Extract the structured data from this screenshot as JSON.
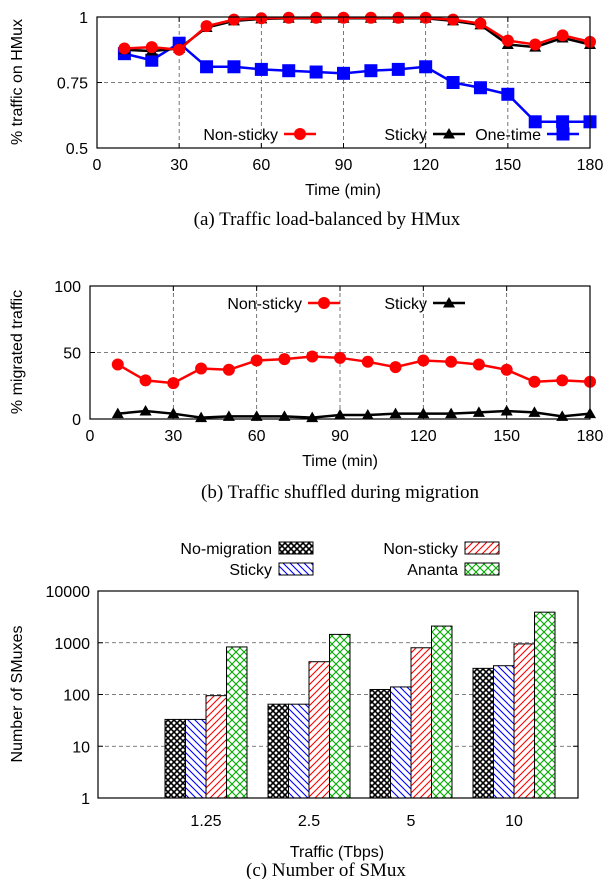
{
  "chart_data": [
    {
      "type": "line",
      "caption": "(a) Traffic load-balanced by HMux",
      "xlabel": "Time (min)",
      "ylabel": "% traffic on HMux",
      "xlim": [
        0,
        180
      ],
      "ylim": [
        0.5,
        1
      ],
      "xticks": [
        "0",
        "30",
        "60",
        "90",
        "120",
        "150",
        "180"
      ],
      "yticks": [
        "0.5",
        "0.75",
        "1"
      ],
      "grid": "dashed",
      "legend_position": "bottom",
      "x": [
        10,
        20,
        30,
        40,
        50,
        60,
        70,
        80,
        90,
        100,
        110,
        120,
        130,
        140,
        150,
        160,
        170,
        180
      ],
      "series": [
        {
          "name": "Non-sticky",
          "marker": "circle",
          "color": "#ff0000",
          "values": [
            0.88,
            0.885,
            0.875,
            0.965,
            0.99,
            0.995,
            0.997,
            0.997,
            0.997,
            0.997,
            0.997,
            0.997,
            0.99,
            0.975,
            0.91,
            0.895,
            0.93,
            0.905
          ]
        },
        {
          "name": "Sticky",
          "marker": "triangle",
          "color": "#000000",
          "values": [
            0.875,
            0.87,
            0.88,
            0.96,
            0.985,
            0.993,
            0.995,
            0.995,
            0.995,
            0.995,
            0.995,
            0.995,
            0.985,
            0.97,
            0.895,
            0.885,
            0.92,
            0.895
          ]
        },
        {
          "name": "One-time",
          "marker": "square",
          "color": "#0000ff",
          "values": [
            0.86,
            0.835,
            0.9,
            0.81,
            0.81,
            0.8,
            0.795,
            0.79,
            0.785,
            0.795,
            0.8,
            0.81,
            0.75,
            0.73,
            0.705,
            0.6,
            0.6,
            0.6
          ]
        }
      ]
    },
    {
      "type": "line",
      "caption": "(b) Traffic shuffled during migration",
      "xlabel": "Time (min)",
      "ylabel": "% migrated traffic",
      "xlim": [
        0,
        180
      ],
      "ylim": [
        0,
        100
      ],
      "xticks": [
        "0",
        "30",
        "60",
        "90",
        "120",
        "150",
        "180"
      ],
      "yticks": [
        "0",
        "50",
        "100"
      ],
      "grid": "dashed",
      "legend_position": "top",
      "x": [
        10,
        20,
        30,
        40,
        50,
        60,
        70,
        80,
        90,
        100,
        110,
        120,
        130,
        140,
        150,
        160,
        170,
        180
      ],
      "series": [
        {
          "name": "Non-sticky",
          "marker": "circle",
          "color": "#ff0000",
          "values": [
            41,
            29,
            27,
            38,
            37,
            44,
            45,
            47,
            46,
            43,
            39,
            44,
            43,
            41,
            37,
            28,
            29,
            28
          ]
        },
        {
          "name": "Sticky",
          "marker": "triangle",
          "color": "#000000",
          "values": [
            4,
            6,
            4,
            1,
            2,
            2,
            2,
            1,
            3,
            3,
            4,
            4,
            4,
            5,
            6,
            5,
            2,
            4
          ]
        }
      ]
    },
    {
      "type": "bar",
      "caption": "(c) Number of SMux",
      "xlabel": "Traffic (Tbps)",
      "ylabel": "Number of SMuxes",
      "yscale": "log",
      "ylim": [
        1,
        10000
      ],
      "yticks": [
        "1",
        "10",
        "100",
        "1000",
        "10000"
      ],
      "grid": "dashed",
      "legend_position": "top",
      "categories": [
        "1.25",
        "2.5",
        "5",
        "10"
      ],
      "series": [
        {
          "name": "No-migration",
          "pattern": "crosshatch-black",
          "color": "#000000",
          "values": [
            33,
            65,
            125,
            320
          ]
        },
        {
          "name": "Sticky",
          "pattern": "diagonal-blue",
          "color": "#0000ff",
          "values": [
            33,
            65,
            140,
            360
          ]
        },
        {
          "name": "Non-sticky",
          "pattern": "diagonal-red",
          "color": "#ff0000",
          "values": [
            95,
            430,
            800,
            950
          ]
        },
        {
          "name": "Ananta",
          "pattern": "crosshatch-green",
          "color": "#00aa00",
          "values": [
            830,
            1450,
            2100,
            3900
          ]
        }
      ]
    }
  ]
}
